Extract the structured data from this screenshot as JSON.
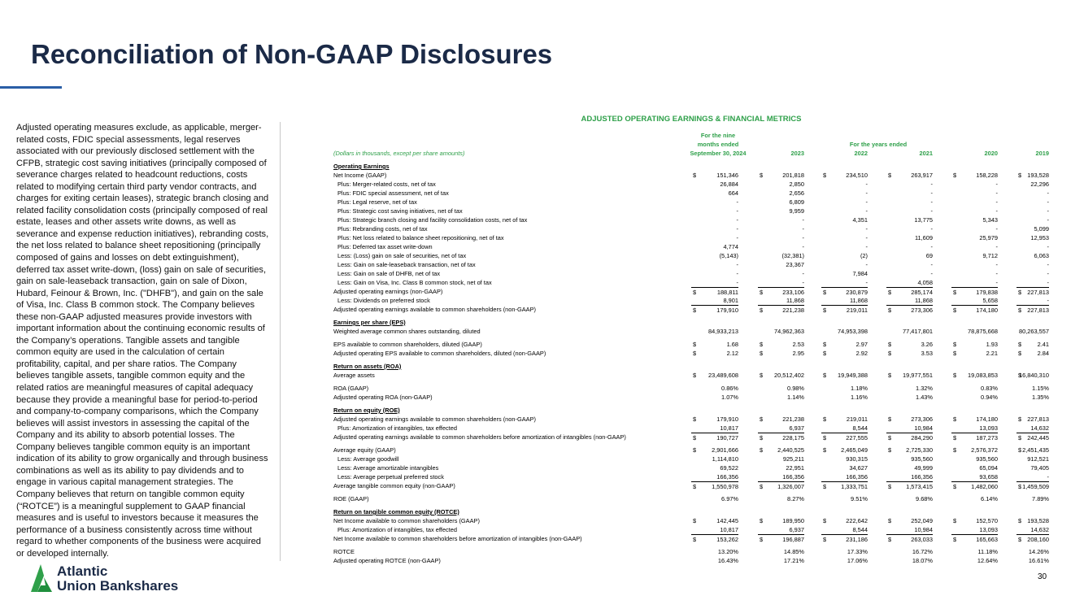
{
  "header": {
    "title": "Reconciliation of Non-GAAP Disclosures"
  },
  "sidebar": "Adjusted operating measures exclude, as applicable, merger-related costs, FDIC special assessments, legal reserves associated with our previously disclosed settlement with the CFPB, strategic cost saving initiatives (principally composed of severance charges related to headcount reductions, costs related to modifying certain third party vendor contracts, and charges for exiting certain leases), strategic branch closing and related facility consolidation costs (principally composed of real estate, leases and other assets write downs, as well as severance and expense reduction initiatives), rebranding costs, the net loss related to balance sheet repositioning (principally composed of gains and losses on debt extinguishment), deferred tax asset write-down, (loss) gain on sale of securities, gain on sale-leaseback transaction, gain on sale of Dixon, Hubard, Feinour & Brown, Inc. (\"DHFB\"), and gain on the sale of Visa, Inc. Class B common stock.  The Company believes these non-GAAP adjusted measures provide investors with important information about the continuing economic results of the Company’s operations. Tangible assets and tangible common equity are used in the calculation of certain profitability, capital, and per share ratios. The Company believes tangible assets, tangible common equity and the related ratios are meaningful measures of capital adequacy because they provide a meaningful base for period-to-period and company-to-company comparisons, which the Company believes will assist investors in assessing the capital of the Company and its ability to absorb potential losses. The Company believes tangible common equity is an important indication of its ability to grow organically and through business combinations as well as its ability to pay dividends and to engage in various capital management strategies. The Company believes that return on tangible common equity (“ROTCE”) is a meaningful supplement to GAAP financial measures and is useful to investors because it measures the performance of a business consistently across time without regard to whether components of the business were acquired or developed internally.",
  "table": {
    "title": "ADJUSTED OPERATING EARNINGS & FINANCIAL METRICS",
    "note": "(Dollars in thousands, except per share amounts)",
    "period_header": [
      "For the nine",
      "months ended",
      "September 30, 2024"
    ],
    "years_header": "For the years ended",
    "columns": [
      "2023",
      "2022",
      "2021",
      "2020",
      "2019"
    ],
    "rows": [
      {
        "label": "Operating Earnings",
        "kind": "section"
      },
      {
        "label": "Net Income (GAAP)",
        "cur": "$",
        "values": [
          "151,346",
          "201,818",
          "234,510",
          "263,917",
          "158,228",
          "193,528"
        ]
      },
      {
        "label": "Plus: Merger-related costs, net of tax",
        "kind": "indent",
        "values": [
          "26,884",
          "2,850",
          "-",
          "-",
          "-",
          "22,296"
        ]
      },
      {
        "label": "Plus: FDIC special assessment, net of tax",
        "kind": "indent",
        "values": [
          "664",
          "2,656",
          "-",
          "-",
          "-",
          "-"
        ]
      },
      {
        "label": "Plus: Legal reserve, net of tax",
        "kind": "indent",
        "values": [
          "-",
          "6,809",
          "-",
          "-",
          "-",
          "-"
        ]
      },
      {
        "label": "Plus: Strategic cost saving initiatives, net of tax",
        "kind": "indent",
        "values": [
          "-",
          "9,959",
          "-",
          "-",
          "-",
          "-"
        ]
      },
      {
        "label": "Plus: Strategic branch closing and facility consolidation costs, net of tax",
        "kind": "indent",
        "values": [
          "-",
          "-",
          "4,351",
          "13,775",
          "5,343",
          "-"
        ]
      },
      {
        "label": "Plus: Rebranding costs, net of tax",
        "kind": "indent",
        "values": [
          "-",
          "-",
          "-",
          "-",
          "-",
          "5,099"
        ]
      },
      {
        "label": "Plus: Net loss related to balance sheet repositioning, net of tax",
        "kind": "indent",
        "values": [
          "-",
          "-",
          "-",
          "11,609",
          "25,979",
          "12,953"
        ]
      },
      {
        "label": "Plus: Deferred tax asset write-down",
        "kind": "indent",
        "values": [
          "4,774",
          "-",
          "-",
          "-",
          "-",
          "-"
        ]
      },
      {
        "label": "Less: (Loss) gain on sale of securities, net of tax",
        "kind": "indent",
        "values": [
          "(5,143)",
          "(32,381)",
          "(2)",
          "69",
          "9,712",
          "6,063"
        ]
      },
      {
        "label": "Less: Gain on sale-leaseback transaction, net of tax",
        "kind": "indent",
        "values": [
          "-",
          "23,367",
          "-",
          "-",
          "-",
          "-"
        ]
      },
      {
        "label": "Less: Gain on sale of DHFB, net of tax",
        "kind": "indent",
        "values": [
          "-",
          "-",
          "7,984",
          "-",
          "-",
          "-"
        ]
      },
      {
        "label": "Less: Gain on Visa, Inc. Class B common stock, net of tax",
        "kind": "indent",
        "values": [
          "-",
          "-",
          "-",
          "4,058",
          "-",
          "-"
        ]
      },
      {
        "label": "Adjusted operating earnings (non-GAAP)",
        "kind": "total",
        "cur": "$",
        "values": [
          "188,811",
          "233,106",
          "230,879",
          "285,174",
          "179,838",
          "227,813"
        ]
      },
      {
        "label": "Less: Dividends on preferred stock",
        "kind": "indent",
        "values": [
          "8,901",
          "11,868",
          "11,868",
          "11,868",
          "5,658",
          "-"
        ]
      },
      {
        "label": "Adjusted operating earnings available to common shareholders (non-GAAP)",
        "kind": "total",
        "cur": "$",
        "values": [
          "179,910",
          "221,238",
          "219,011",
          "273,306",
          "174,180",
          "227,813"
        ]
      },
      {
        "label": "Earnings per share (EPS)",
        "kind": "section"
      },
      {
        "label": "Weighted average common shares outstanding, diluted",
        "values": [
          "84,933,213",
          "74,962,363",
          "74,953,398",
          "77,417,801",
          "78,875,668",
          "80,263,557"
        ]
      },
      {
        "label": "EPS available to common shareholders, diluted (GAAP)",
        "kind": "gap",
        "cur": "$",
        "values": [
          "1.68",
          "2.53",
          "2.97",
          "3.26",
          "1.93",
          "2.41"
        ]
      },
      {
        "label": "Adjusted operating EPS available to common shareholders, diluted (non-GAAP)",
        "cur": "$",
        "values": [
          "2.12",
          "2.95",
          "2.92",
          "3.53",
          "2.21",
          "2.84"
        ]
      },
      {
        "label": "Return on assets (ROA)",
        "kind": "section"
      },
      {
        "label": "Average assets",
        "cur": "$",
        "values": [
          "23,489,608",
          "20,512,402",
          "19,949,388",
          "19,977,551",
          "19,083,853",
          "16,840,310"
        ]
      },
      {
        "label": "ROA (GAAP)",
        "kind": "gap",
        "values": [
          "0.86%",
          "0.98%",
          "1.18%",
          "1.32%",
          "0.83%",
          "1.15%"
        ]
      },
      {
        "label": "Adjusted operating ROA (non-GAAP)",
        "values": [
          "1.07%",
          "1.14%",
          "1.16%",
          "1.43%",
          "0.94%",
          "1.35%"
        ]
      },
      {
        "label": "Return on equity (ROE)",
        "kind": "section"
      },
      {
        "label": "Adjusted operating earnings available to common shareholders (non-GAAP)",
        "cur": "$",
        "values": [
          "179,910",
          "221,238",
          "219,011",
          "273,306",
          "174,180",
          "227,813"
        ]
      },
      {
        "label": "Plus: Amortization of intangibles, tax effected",
        "kind": "indent",
        "values": [
          "10,817",
          "6,937",
          "8,544",
          "10,984",
          "13,093",
          "14,632"
        ]
      },
      {
        "label": "Adjusted operating earnings available to common shareholders before amortization of intangibles (non-GAAP)",
        "kind": "total",
        "cur": "$",
        "values": [
          "190,727",
          "228,175",
          "227,555",
          "284,290",
          "187,273",
          "242,445"
        ]
      },
      {
        "label": "Average equity (GAAP)",
        "kind": "gap",
        "cur": "$",
        "values": [
          "2,901,666",
          "2,440,525",
          "2,465,049",
          "2,725,330",
          "2,576,372",
          "2,451,435"
        ]
      },
      {
        "label": "Less: Average goodwill",
        "kind": "indent",
        "values": [
          "1,114,810",
          "925,211",
          "930,315",
          "935,560",
          "935,560",
          "912,521"
        ]
      },
      {
        "label": "Less: Average amortizable intangibles",
        "kind": "indent",
        "values": [
          "69,522",
          "22,951",
          "34,627",
          "49,999",
          "65,094",
          "79,405"
        ]
      },
      {
        "label": "Less: Average perpetual preferred stock",
        "kind": "indent",
        "values": [
          "166,356",
          "166,356",
          "166,356",
          "166,356",
          "93,658",
          "-"
        ]
      },
      {
        "label": "Average tangible common equity (non-GAAP)",
        "kind": "total",
        "cur": "$",
        "values": [
          "1,550,978",
          "1,326,007",
          "1,333,751",
          "1,573,415",
          "1,482,060",
          "1,459,509"
        ]
      },
      {
        "label": "ROE (GAAP)",
        "kind": "gap",
        "values": [
          "6.97%",
          "8.27%",
          "9.51%",
          "9.68%",
          "6.14%",
          "7.89%"
        ]
      },
      {
        "label": "Return on tangible common equity (ROTCE)",
        "kind": "section"
      },
      {
        "label": "Net Income available to common shareholders (GAAP)",
        "cur": "$",
        "values": [
          "142,445",
          "189,950",
          "222,642",
          "252,049",
          "152,570",
          "193,528"
        ]
      },
      {
        "label": "Plus: Amortization of intangibles, tax effected",
        "kind": "indent",
        "values": [
          "10,817",
          "6,937",
          "8,544",
          "10,984",
          "13,093",
          "14,632"
        ]
      },
      {
        "label": "Net Income available to common shareholders before amortization of intangibles (non-GAAP)",
        "kind": "total",
        "cur": "$",
        "values": [
          "153,262",
          "196,887",
          "231,186",
          "263,033",
          "165,663",
          "208,160"
        ]
      },
      {
        "label": "ROTCE",
        "kind": "gap",
        "values": [
          "13.20%",
          "14.85%",
          "17.33%",
          "16.72%",
          "11.18%",
          "14.26%"
        ]
      },
      {
        "label": "Adjusted operating ROTCE (non-GAAP)",
        "values": [
          "16.43%",
          "17.21%",
          "17.06%",
          "18.07%",
          "12.64%",
          "16.61%"
        ]
      }
    ]
  },
  "footer": {
    "logo": [
      "Atlantic",
      "Union Bankshares"
    ],
    "page_number": "30"
  }
}
